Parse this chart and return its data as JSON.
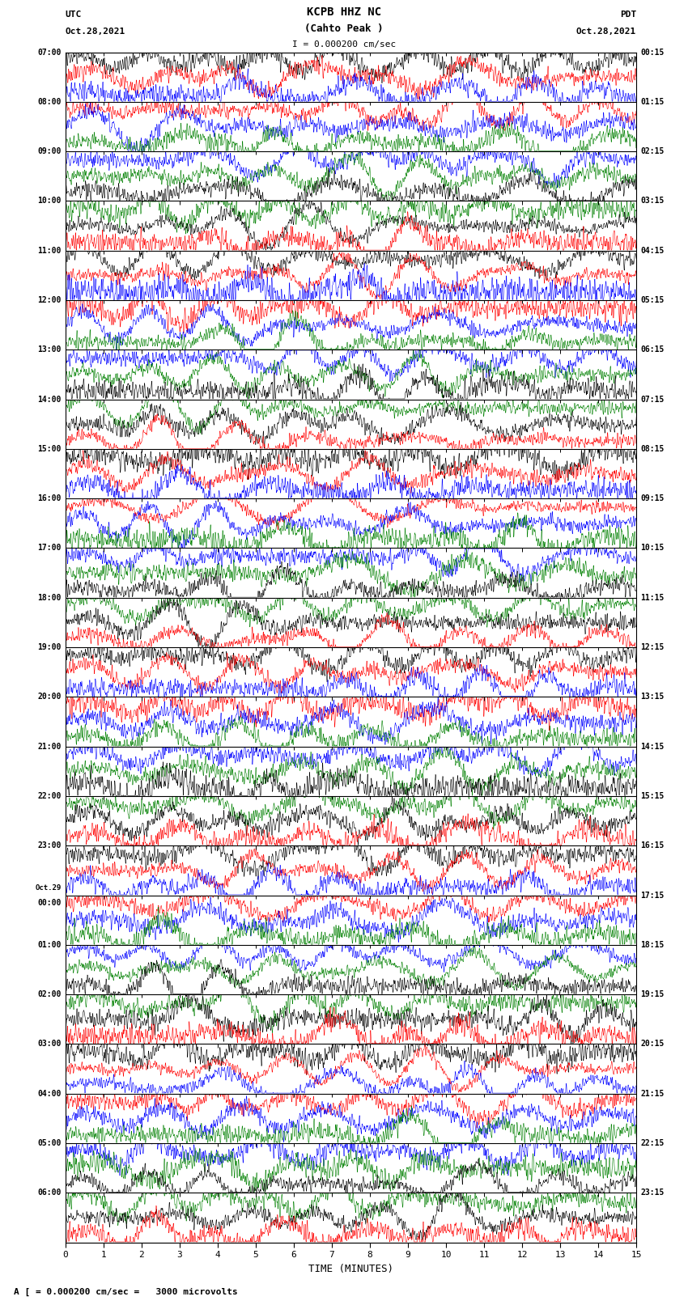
{
  "title_line1": "KCPB HHZ NC",
  "title_line2": "(Cahto Peak )",
  "scale_text": "I = 0.000200 cm/sec",
  "left_label": "UTC",
  "left_date": "Oct.28,2021",
  "right_label": "PDT",
  "right_date": "Oct.28,2021",
  "bottom_label": "TIME (MINUTES)",
  "bottom_note": "A [ = 0.000200 cm/sec =   3000 microvolts",
  "utc_times": [
    "07:00",
    "08:00",
    "09:00",
    "10:00",
    "11:00",
    "12:00",
    "13:00",
    "14:00",
    "15:00",
    "16:00",
    "17:00",
    "18:00",
    "19:00",
    "20:00",
    "21:00",
    "22:00",
    "23:00",
    "Oct.29\n00:00",
    "01:00",
    "02:00",
    "03:00",
    "04:00",
    "05:00",
    "06:00"
  ],
  "pdt_times": [
    "00:15",
    "01:15",
    "02:15",
    "03:15",
    "04:15",
    "05:15",
    "06:15",
    "07:15",
    "08:15",
    "09:15",
    "10:15",
    "11:15",
    "12:15",
    "13:15",
    "14:15",
    "15:15",
    "16:15",
    "17:15",
    "18:15",
    "19:15",
    "20:15",
    "21:15",
    "22:15",
    "23:15"
  ],
  "n_rows": 24,
  "n_cols": 15,
  "sub_traces": 3,
  "colors_per_row": [
    [
      "black",
      "red",
      "blue"
    ],
    [
      "red",
      "blue",
      "green"
    ],
    [
      "blue",
      "green",
      "black"
    ],
    [
      "green",
      "black",
      "red"
    ],
    [
      "black",
      "red",
      "blue"
    ],
    [
      "red",
      "blue",
      "green"
    ],
    [
      "blue",
      "green",
      "black"
    ],
    [
      "green",
      "black",
      "red"
    ],
    [
      "black",
      "red",
      "blue"
    ],
    [
      "red",
      "blue",
      "green"
    ],
    [
      "blue",
      "green",
      "black"
    ],
    [
      "green",
      "black",
      "red"
    ],
    [
      "black",
      "red",
      "blue"
    ],
    [
      "red",
      "blue",
      "green"
    ],
    [
      "blue",
      "green",
      "black"
    ],
    [
      "green",
      "black",
      "red"
    ],
    [
      "black",
      "red",
      "blue"
    ],
    [
      "red",
      "blue",
      "green"
    ],
    [
      "blue",
      "green",
      "black"
    ],
    [
      "green",
      "black",
      "red"
    ],
    [
      "black",
      "red",
      "blue"
    ],
    [
      "red",
      "blue",
      "green"
    ],
    [
      "blue",
      "green",
      "black"
    ],
    [
      "green",
      "black",
      "red"
    ]
  ],
  "background_color": "white",
  "fig_width": 8.5,
  "fig_height": 16.13,
  "samples_per_minute": 200
}
